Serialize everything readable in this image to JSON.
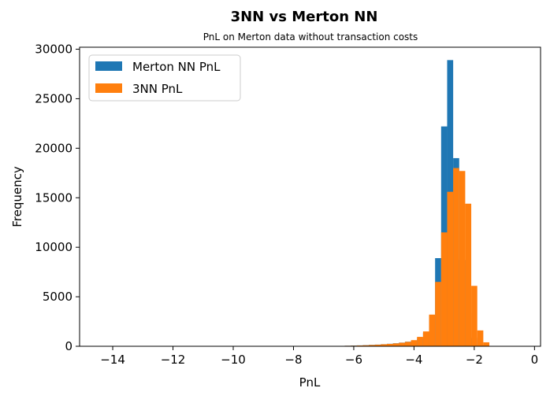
{
  "chart_data": {
    "type": "bar",
    "title": "3NN vs Merton NN",
    "subtitle": "PnL on Merton data without transaction costs",
    "xlabel": "PnL",
    "ylabel": "Frequency",
    "xlim": [
      -15.1,
      0.2
    ],
    "ylim": [
      0,
      30200
    ],
    "xticks": [
      -14,
      -12,
      -10,
      -8,
      -6,
      -4,
      -2,
      0
    ],
    "xtick_labels": [
      "−14",
      "−12",
      "−10",
      "−8",
      "−6",
      "−4",
      "−2",
      "0"
    ],
    "yticks": [
      0,
      5000,
      10000,
      15000,
      20000,
      25000,
      30000
    ],
    "ytick_labels": [
      "0",
      "5000",
      "10000",
      "15000",
      "20000",
      "25000",
      "30000"
    ],
    "bin_width": 0.2,
    "series": [
      {
        "name": "Merton NN PnL",
        "color": "#1f77b4",
        "bins": [
          [
            -6.9,
            -6.7,
            20
          ],
          [
            -6.7,
            -6.5,
            30
          ],
          [
            -6.5,
            -6.3,
            40
          ],
          [
            -6.3,
            -6.1,
            50
          ],
          [
            -6.1,
            -5.9,
            70
          ],
          [
            -5.9,
            -5.7,
            90
          ],
          [
            -5.7,
            -5.5,
            110
          ],
          [
            -5.5,
            -5.3,
            140
          ],
          [
            -5.3,
            -5.1,
            170
          ],
          [
            -5.1,
            -4.9,
            210
          ],
          [
            -4.9,
            -4.7,
            250
          ],
          [
            -4.7,
            -4.5,
            300
          ],
          [
            -4.5,
            -4.3,
            370
          ],
          [
            -4.3,
            -4.1,
            460
          ],
          [
            -4.1,
            -3.9,
            580
          ],
          [
            -3.9,
            -3.7,
            780
          ],
          [
            -3.7,
            -3.5,
            1350
          ],
          [
            -3.5,
            -3.3,
            3100
          ],
          [
            -3.3,
            -3.1,
            8900
          ],
          [
            -3.1,
            -2.9,
            22200
          ],
          [
            -2.9,
            -2.7,
            28900
          ],
          [
            -2.7,
            -2.5,
            19000
          ],
          [
            -2.5,
            -2.3,
            8700
          ],
          [
            -2.3,
            -2.1,
            3300
          ],
          [
            -2.1,
            -1.9,
            850
          ],
          [
            -1.9,
            -1.7,
            150
          ]
        ]
      },
      {
        "name": "3NN PnL",
        "color": "#ff7f0e",
        "bins": [
          [
            -6.7,
            -6.5,
            30
          ],
          [
            -6.5,
            -6.3,
            40
          ],
          [
            -6.3,
            -6.1,
            50
          ],
          [
            -6.1,
            -5.9,
            60
          ],
          [
            -5.9,
            -5.7,
            80
          ],
          [
            -5.7,
            -5.5,
            100
          ],
          [
            -5.5,
            -5.3,
            130
          ],
          [
            -5.3,
            -5.1,
            160
          ],
          [
            -5.1,
            -4.9,
            200
          ],
          [
            -4.9,
            -4.7,
            240
          ],
          [
            -4.7,
            -4.5,
            290
          ],
          [
            -4.5,
            -4.3,
            360
          ],
          [
            -4.3,
            -4.1,
            450
          ],
          [
            -4.1,
            -3.9,
            620
          ],
          [
            -3.9,
            -3.7,
            950
          ],
          [
            -3.7,
            -3.5,
            1500
          ],
          [
            -3.5,
            -3.3,
            3200
          ],
          [
            -3.3,
            -3.1,
            6500
          ],
          [
            -3.1,
            -2.9,
            11500
          ],
          [
            -2.9,
            -2.7,
            15600
          ],
          [
            -2.7,
            -2.5,
            18000
          ],
          [
            -2.5,
            -2.3,
            17700
          ],
          [
            -2.3,
            -2.1,
            14400
          ],
          [
            -2.1,
            -1.9,
            6100
          ],
          [
            -1.9,
            -1.7,
            1600
          ],
          [
            -1.7,
            -1.5,
            400
          ]
        ]
      }
    ],
    "legend_position": "upper-left",
    "grid": false
  }
}
